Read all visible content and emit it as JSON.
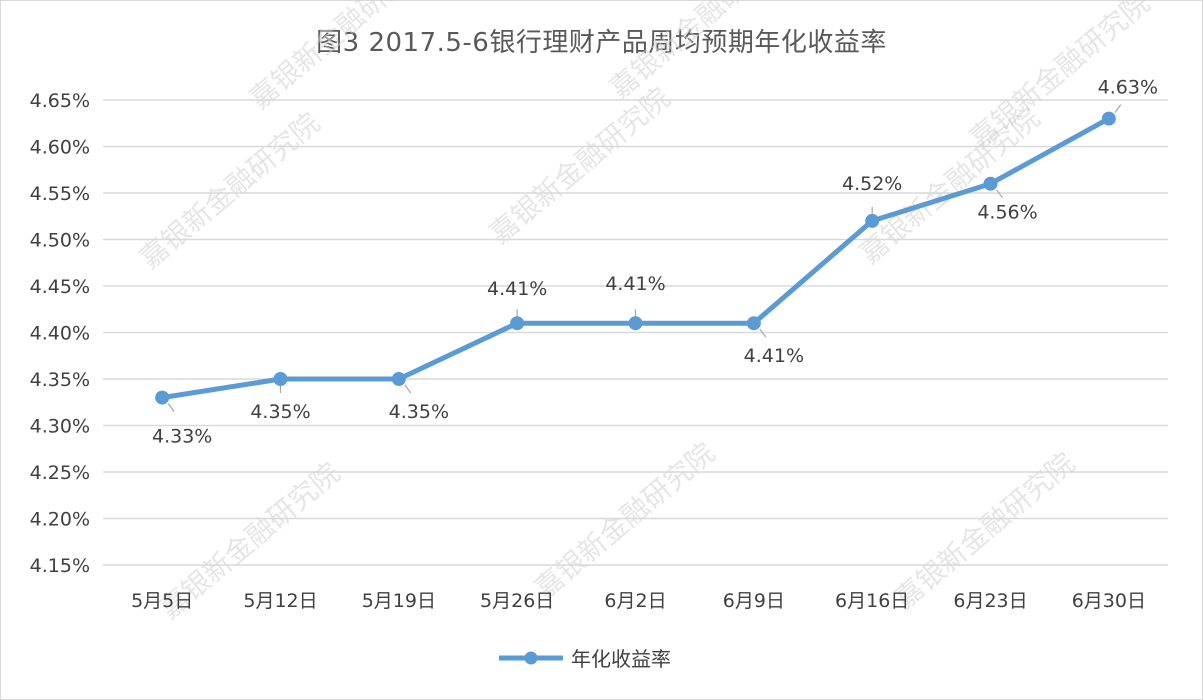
{
  "chart_data": {
    "type": "line",
    "title": "图3 2017.5-6银行理财产品周均预期年化收益率",
    "categories": [
      "5月5日",
      "5月12日",
      "5月19日",
      "5月26日",
      "6月2日",
      "6月9日",
      "6月16日",
      "6月23日",
      "6月30日"
    ],
    "series": [
      {
        "name": "年化收益率",
        "values": [
          4.33,
          4.35,
          4.35,
          4.41,
          4.41,
          4.41,
          4.52,
          4.56,
          4.63
        ],
        "labels": [
          "4.33%",
          "4.35%",
          "4.35%",
          "4.41%",
          "4.41%",
          "4.41%",
          "4.52%",
          "4.56%",
          "4.63%"
        ],
        "color": "#5b9bd5"
      }
    ],
    "ylim": [
      4.15,
      4.65
    ],
    "yticks": [
      "4.15%",
      "4.20%",
      "4.25%",
      "4.30%",
      "4.35%",
      "4.40%",
      "4.45%",
      "4.50%",
      "4.55%",
      "4.60%",
      "4.65%"
    ],
    "grid": true,
    "legend": "bottom"
  },
  "watermark": "嘉银新金融研究院",
  "colors": {
    "gridline": "#d9d9d9",
    "text": "#404040",
    "title": "#595959"
  }
}
